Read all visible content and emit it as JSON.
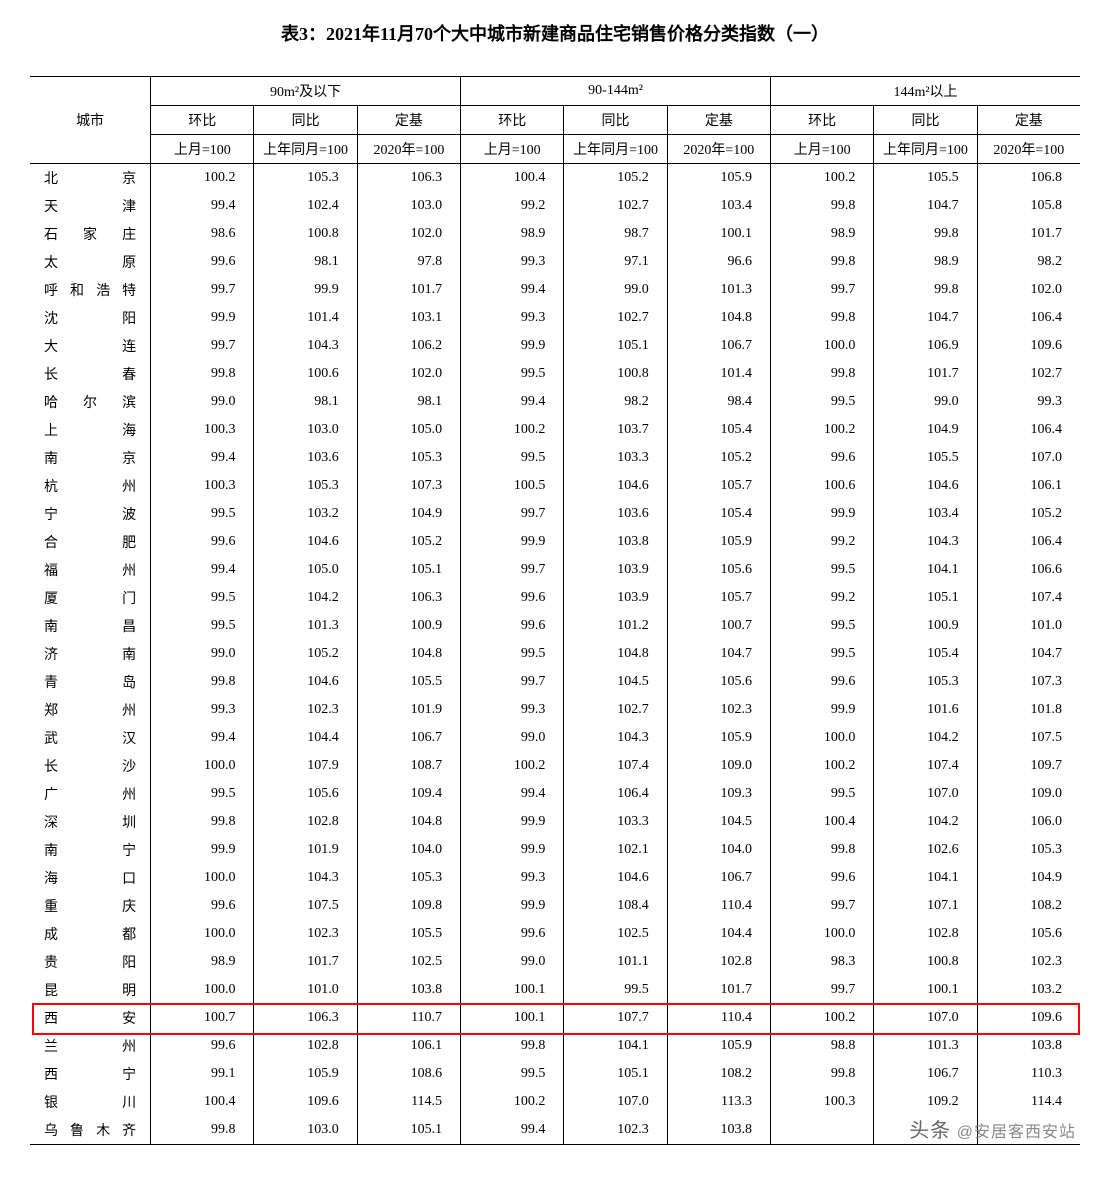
{
  "title": "表3：2021年11月70个大中城市新建商品住宅销售价格分类指数（一）",
  "header": {
    "city": "城市",
    "groups": [
      "90m²及以下",
      "90-144m²",
      "144m²以上"
    ],
    "sub": [
      "环比",
      "同比",
      "定基"
    ],
    "base": [
      "上月=100",
      "上年同月=100",
      "2020年=100"
    ]
  },
  "highlight_city": "西　　安",
  "highlight_color": "#ff0000",
  "watermark": "头条 @安居客西安站",
  "rows": [
    {
      "city": "北　　京",
      "v": [
        "100.2",
        "105.3",
        "106.3",
        "100.4",
        "105.2",
        "105.9",
        "100.2",
        "105.5",
        "106.8"
      ]
    },
    {
      "city": "天　　津",
      "v": [
        "99.4",
        "102.4",
        "103.0",
        "99.2",
        "102.7",
        "103.4",
        "99.8",
        "104.7",
        "105.8"
      ]
    },
    {
      "city": "石 家 庄",
      "v": [
        "98.6",
        "100.8",
        "102.0",
        "98.9",
        "98.7",
        "100.1",
        "98.9",
        "99.8",
        "101.7"
      ]
    },
    {
      "city": "太　　原",
      "v": [
        "99.6",
        "98.1",
        "97.8",
        "99.3",
        "97.1",
        "96.6",
        "99.8",
        "98.9",
        "98.2"
      ]
    },
    {
      "city": "呼和浩特",
      "v": [
        "99.7",
        "99.9",
        "101.7",
        "99.4",
        "99.0",
        "101.3",
        "99.7",
        "99.8",
        "102.0"
      ]
    },
    {
      "city": "沈　　阳",
      "v": [
        "99.9",
        "101.4",
        "103.1",
        "99.3",
        "102.7",
        "104.8",
        "99.8",
        "104.7",
        "106.4"
      ]
    },
    {
      "city": "大　　连",
      "v": [
        "99.7",
        "104.3",
        "106.2",
        "99.9",
        "105.1",
        "106.7",
        "100.0",
        "106.9",
        "109.6"
      ]
    },
    {
      "city": "长　　春",
      "v": [
        "99.8",
        "100.6",
        "102.0",
        "99.5",
        "100.8",
        "101.4",
        "99.8",
        "101.7",
        "102.7"
      ]
    },
    {
      "city": "哈 尔 滨",
      "v": [
        "99.0",
        "98.1",
        "98.1",
        "99.4",
        "98.2",
        "98.4",
        "99.5",
        "99.0",
        "99.3"
      ]
    },
    {
      "city": "上　　海",
      "v": [
        "100.3",
        "103.0",
        "105.0",
        "100.2",
        "103.7",
        "105.4",
        "100.2",
        "104.9",
        "106.4"
      ]
    },
    {
      "city": "南　　京",
      "v": [
        "99.4",
        "103.6",
        "105.3",
        "99.5",
        "103.3",
        "105.2",
        "99.6",
        "105.5",
        "107.0"
      ]
    },
    {
      "city": "杭　　州",
      "v": [
        "100.3",
        "105.3",
        "107.3",
        "100.5",
        "104.6",
        "105.7",
        "100.6",
        "104.6",
        "106.1"
      ]
    },
    {
      "city": "宁　　波",
      "v": [
        "99.5",
        "103.2",
        "104.9",
        "99.7",
        "103.6",
        "105.4",
        "99.9",
        "103.4",
        "105.2"
      ]
    },
    {
      "city": "合　　肥",
      "v": [
        "99.6",
        "104.6",
        "105.2",
        "99.9",
        "103.8",
        "105.9",
        "99.2",
        "104.3",
        "106.4"
      ]
    },
    {
      "city": "福　　州",
      "v": [
        "99.4",
        "105.0",
        "105.1",
        "99.7",
        "103.9",
        "105.6",
        "99.5",
        "104.1",
        "106.6"
      ]
    },
    {
      "city": "厦　　门",
      "v": [
        "99.5",
        "104.2",
        "106.3",
        "99.6",
        "103.9",
        "105.7",
        "99.2",
        "105.1",
        "107.4"
      ]
    },
    {
      "city": "南　　昌",
      "v": [
        "99.5",
        "101.3",
        "100.9",
        "99.6",
        "101.2",
        "100.7",
        "99.5",
        "100.9",
        "101.0"
      ]
    },
    {
      "city": "济　　南",
      "v": [
        "99.0",
        "105.2",
        "104.8",
        "99.5",
        "104.8",
        "104.7",
        "99.5",
        "105.4",
        "104.7"
      ]
    },
    {
      "city": "青　　岛",
      "v": [
        "99.8",
        "104.6",
        "105.5",
        "99.7",
        "104.5",
        "105.6",
        "99.6",
        "105.3",
        "107.3"
      ]
    },
    {
      "city": "郑　　州",
      "v": [
        "99.3",
        "102.3",
        "101.9",
        "99.3",
        "102.7",
        "102.3",
        "99.9",
        "101.6",
        "101.8"
      ]
    },
    {
      "city": "武　　汉",
      "v": [
        "99.4",
        "104.4",
        "106.7",
        "99.0",
        "104.3",
        "105.9",
        "100.0",
        "104.2",
        "107.5"
      ]
    },
    {
      "city": "长　　沙",
      "v": [
        "100.0",
        "107.9",
        "108.7",
        "100.2",
        "107.4",
        "109.0",
        "100.2",
        "107.4",
        "109.7"
      ]
    },
    {
      "city": "广　　州",
      "v": [
        "99.5",
        "105.6",
        "109.4",
        "99.4",
        "106.4",
        "109.3",
        "99.5",
        "107.0",
        "109.0"
      ]
    },
    {
      "city": "深　　圳",
      "v": [
        "99.8",
        "102.8",
        "104.8",
        "99.9",
        "103.3",
        "104.5",
        "100.4",
        "104.2",
        "106.0"
      ]
    },
    {
      "city": "南　　宁",
      "v": [
        "99.9",
        "101.9",
        "104.0",
        "99.9",
        "102.1",
        "104.0",
        "99.8",
        "102.6",
        "105.3"
      ]
    },
    {
      "city": "海　　口",
      "v": [
        "100.0",
        "104.3",
        "105.3",
        "99.3",
        "104.6",
        "106.7",
        "99.6",
        "104.1",
        "104.9"
      ]
    },
    {
      "city": "重　　庆",
      "v": [
        "99.6",
        "107.5",
        "109.8",
        "99.9",
        "108.4",
        "110.4",
        "99.7",
        "107.1",
        "108.2"
      ]
    },
    {
      "city": "成　　都",
      "v": [
        "100.0",
        "102.3",
        "105.5",
        "99.6",
        "102.5",
        "104.4",
        "100.0",
        "102.8",
        "105.6"
      ]
    },
    {
      "city": "贵　　阳",
      "v": [
        "98.9",
        "101.7",
        "102.5",
        "99.0",
        "101.1",
        "102.8",
        "98.3",
        "100.8",
        "102.3"
      ]
    },
    {
      "city": "昆　　明",
      "v": [
        "100.0",
        "101.0",
        "103.8",
        "100.1",
        "99.5",
        "101.7",
        "99.7",
        "100.1",
        "103.2"
      ]
    },
    {
      "city": "西　　安",
      "v": [
        "100.7",
        "106.3",
        "110.7",
        "100.1",
        "107.7",
        "110.4",
        "100.2",
        "107.0",
        "109.6"
      ]
    },
    {
      "city": "兰　　州",
      "v": [
        "99.6",
        "102.8",
        "106.1",
        "99.8",
        "104.1",
        "105.9",
        "98.8",
        "101.3",
        "103.8"
      ]
    },
    {
      "city": "西　　宁",
      "v": [
        "99.1",
        "105.9",
        "108.6",
        "99.5",
        "105.1",
        "108.2",
        "99.8",
        "106.7",
        "110.3"
      ]
    },
    {
      "city": "银　　川",
      "v": [
        "100.4",
        "109.6",
        "114.5",
        "100.2",
        "107.0",
        "113.3",
        "100.3",
        "109.2",
        "114.4"
      ]
    },
    {
      "city": "乌鲁木齐",
      "v": [
        "99.8",
        "103.0",
        "105.1",
        "99.4",
        "102.3",
        "103.8",
        "",
        "",
        ""
      ]
    }
  ]
}
